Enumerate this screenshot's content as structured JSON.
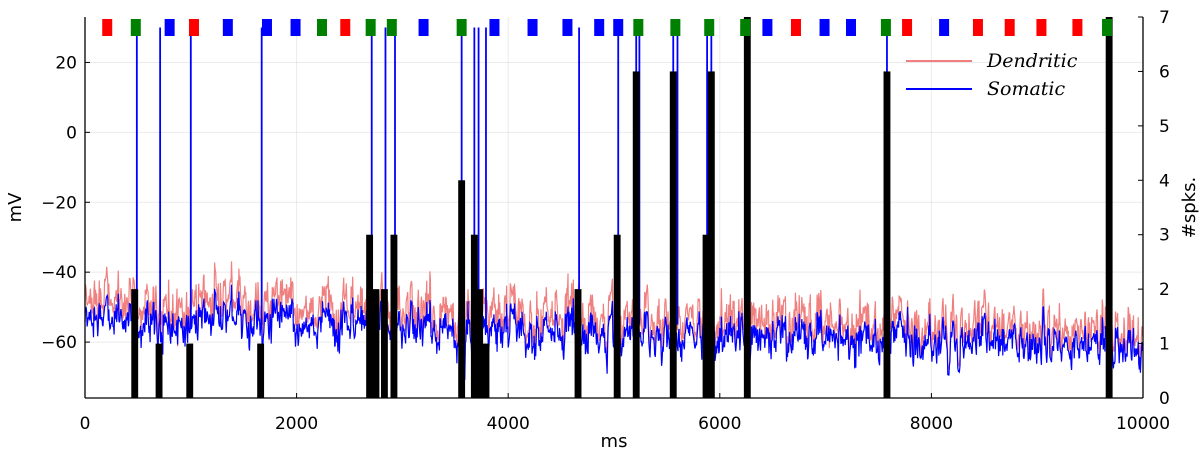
{
  "chart_data": {
    "type": "line",
    "xlabel": "ms",
    "ylabel": "mV",
    "y2label": "#spks.",
    "xlim": [
      0,
      10000
    ],
    "ylim": [
      -76,
      33
    ],
    "y2lim": [
      0,
      7
    ],
    "x_ticks": [
      0,
      2000,
      4000,
      6000,
      8000,
      10000
    ],
    "x_tick_labels": [
      "0",
      "2000",
      "4000",
      "6000",
      "8000",
      "10000"
    ],
    "y_ticks": [
      -60,
      -40,
      -20,
      0,
      20
    ],
    "y_tick_labels": [
      "−60",
      "−40",
      "−20",
      "0",
      "20"
    ],
    "y2_ticks": [
      0,
      1,
      2,
      3,
      4,
      5,
      6,
      7
    ],
    "y2_tick_labels": [
      "0",
      "1",
      "2",
      "3",
      "4",
      "5",
      "6",
      "7"
    ],
    "grid": true,
    "legend_position": "top-right",
    "series": [
      {
        "name": "Dendritic",
        "color": "#f08080",
        "baseline_start": -48,
        "baseline_end": -57
      },
      {
        "name": "Somatic",
        "color": "#0000ff",
        "baseline_start": -53,
        "baseline_end": -61
      }
    ],
    "somatic_spike_times": [
      490,
      710,
      1000,
      1670,
      2710,
      2840,
      2930,
      3560,
      3680,
      3720,
      3790,
      4670,
      5040,
      5210,
      5240,
      5560,
      5600,
      5880,
      5920,
      6250,
      6280,
      7580,
      9680
    ],
    "spike_peak_mv": 30,
    "spike_count_bars": {
      "x": [
        470,
        700,
        990,
        1660,
        2690,
        2750,
        2830,
        2920,
        3560,
        3680,
        3730,
        3790,
        4660,
        5030,
        5210,
        5560,
        5870,
        5920,
        6260,
        7580,
        9680
      ],
      "counts": [
        2,
        1,
        1,
        1,
        3,
        2,
        2,
        3,
        4,
        3,
        2,
        1,
        2,
        3,
        6,
        6,
        3,
        6,
        7,
        6,
        7
      ]
    },
    "stimulus_markers": [
      {
        "x": 210,
        "color": "red"
      },
      {
        "x": 480,
        "color": "green"
      },
      {
        "x": 800,
        "color": "blue"
      },
      {
        "x": 1030,
        "color": "red"
      },
      {
        "x": 1350,
        "color": "blue"
      },
      {
        "x": 1720,
        "color": "blue"
      },
      {
        "x": 1990,
        "color": "blue"
      },
      {
        "x": 2240,
        "color": "green"
      },
      {
        "x": 2460,
        "color": "red"
      },
      {
        "x": 2700,
        "color": "green"
      },
      {
        "x": 2900,
        "color": "green"
      },
      {
        "x": 3200,
        "color": "blue"
      },
      {
        "x": 3560,
        "color": "green"
      },
      {
        "x": 3870,
        "color": "blue"
      },
      {
        "x": 4230,
        "color": "blue"
      },
      {
        "x": 4560,
        "color": "blue"
      },
      {
        "x": 4860,
        "color": "blue"
      },
      {
        "x": 5040,
        "color": "blue"
      },
      {
        "x": 5230,
        "color": "green"
      },
      {
        "x": 5580,
        "color": "green"
      },
      {
        "x": 5900,
        "color": "green"
      },
      {
        "x": 6240,
        "color": "green"
      },
      {
        "x": 6450,
        "color": "blue"
      },
      {
        "x": 6720,
        "color": "red"
      },
      {
        "x": 6990,
        "color": "blue"
      },
      {
        "x": 7240,
        "color": "blue"
      },
      {
        "x": 7570,
        "color": "green"
      },
      {
        "x": 7770,
        "color": "red"
      },
      {
        "x": 8120,
        "color": "blue"
      },
      {
        "x": 8440,
        "color": "red"
      },
      {
        "x": 8740,
        "color": "red"
      },
      {
        "x": 9040,
        "color": "red"
      },
      {
        "x": 9380,
        "color": "red"
      },
      {
        "x": 9660,
        "color": "green"
      }
    ]
  }
}
